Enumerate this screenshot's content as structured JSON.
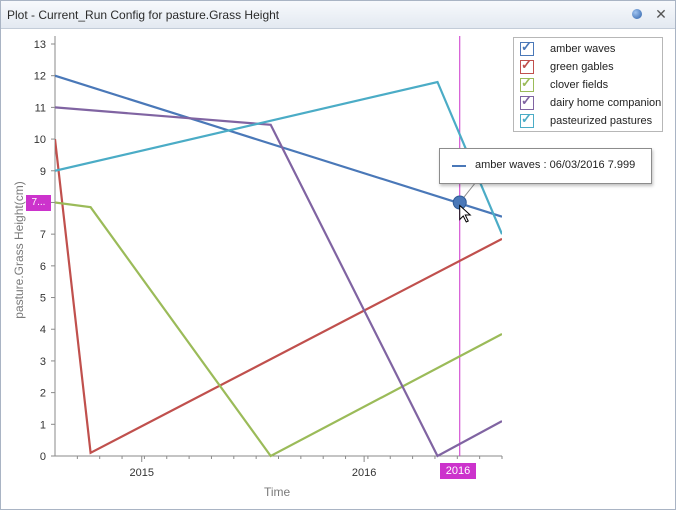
{
  "window": {
    "title": "Plot - Current_Run Config for pasture.Grass Height"
  },
  "tooltip": {
    "text": "amber waves : 06/03/2016 7.999",
    "color": "#4a78b8"
  },
  "crosshair": {
    "y_label": "7...",
    "x_label": "2016",
    "color": "#cc33cc"
  },
  "chart_data": {
    "type": "line",
    "xlabel": "Time",
    "ylabel": "pasture.Grass Height(cm)",
    "x_ticks": [
      {
        "label": "2015",
        "x": 2015.0
      },
      {
        "label": "2016",
        "x": 2016.0
      }
    ],
    "xlim": [
      2014.61,
      2016.62
    ],
    "ylim": [
      0,
      13
    ],
    "y_ticks": [
      0,
      1,
      2,
      3,
      4,
      5,
      6,
      7,
      8,
      9,
      10,
      11,
      12,
      13
    ],
    "grid": false,
    "legend_position": "top-right",
    "crosshair_x": 2016.43,
    "highlight_point": {
      "x": 2016.43,
      "y": 7.999,
      "series": "amber waves"
    },
    "series": [
      {
        "name": "amber waves",
        "color": "#4a78b8",
        "checked": true,
        "points": [
          [
            2014.61,
            12.0
          ],
          [
            2016.62,
            7.55
          ]
        ]
      },
      {
        "name": "green gables",
        "color": "#c0504d",
        "checked": true,
        "points": [
          [
            2014.61,
            10.0
          ],
          [
            2014.77,
            0.1
          ],
          [
            2016.62,
            6.85
          ]
        ]
      },
      {
        "name": "clover fields",
        "color": "#9bbb59",
        "checked": true,
        "points": [
          [
            2014.61,
            8.0
          ],
          [
            2014.77,
            7.85
          ],
          [
            2015.58,
            0.0
          ],
          [
            2016.62,
            3.85
          ]
        ]
      },
      {
        "name": "dairy home companion",
        "color": "#8064a2",
        "checked": true,
        "points": [
          [
            2014.61,
            11.0
          ],
          [
            2015.58,
            10.45
          ],
          [
            2016.33,
            0.0
          ],
          [
            2016.62,
            1.1
          ]
        ]
      },
      {
        "name": "pasteurized pastures",
        "color": "#4bacc6",
        "checked": true,
        "points": [
          [
            2014.61,
            9.0
          ],
          [
            2016.33,
            11.8
          ],
          [
            2016.62,
            7.0
          ]
        ]
      }
    ]
  }
}
